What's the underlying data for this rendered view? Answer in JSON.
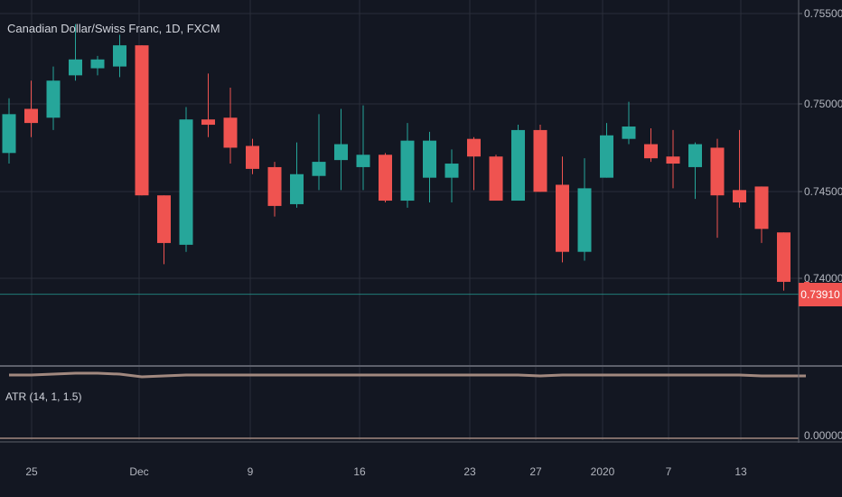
{
  "chart_title": "Canadian Dollar/Swiss Franc, 1D, FXCM",
  "colors": {
    "background": "#131722",
    "grid": "#2a2e39",
    "text": "#d1d4dc",
    "axis_text": "#b2b5be",
    "up": "#26a69a",
    "down": "#ef5350",
    "atr_line": "#a1887f",
    "price_line": "#26a69a"
  },
  "chart_data": [
    {
      "type": "candlestick",
      "title": "Canadian Dollar/Swiss Franc, 1D, FXCM",
      "y_ticks": [
        "0.75500",
        "0.75000",
        "0.74500",
        "0.74000"
      ],
      "ylim": [
        0.7365,
        0.7555
      ],
      "x_ticks": [
        "25",
        "Dec",
        "9",
        "16",
        "23",
        "27",
        "2020",
        "7",
        "13"
      ],
      "last_price": 0.7391,
      "last_price_label": "0.73910",
      "grid": true,
      "candles": [
        {
          "o": 0.7471,
          "h": 0.7502,
          "l": 0.7465,
          "c": 0.7493
        },
        {
          "o": 0.7496,
          "h": 0.7512,
          "l": 0.748,
          "c": 0.7488
        },
        {
          "o": 0.7491,
          "h": 0.752,
          "l": 0.7484,
          "c": 0.7512
        },
        {
          "o": 0.7515,
          "h": 0.7544,
          "l": 0.7512,
          "c": 0.7524
        },
        {
          "o": 0.7519,
          "h": 0.7526,
          "l": 0.7515,
          "c": 0.7524
        },
        {
          "o": 0.752,
          "h": 0.7538,
          "l": 0.7514,
          "c": 0.7532
        },
        {
          "o": 0.7532,
          "h": 0.7532,
          "l": 0.7447,
          "c": 0.7447
        },
        {
          "o": 0.7447,
          "h": 0.7447,
          "l": 0.7408,
          "c": 0.742
        },
        {
          "o": 0.7419,
          "h": 0.7497,
          "l": 0.7415,
          "c": 0.749
        },
        {
          "o": 0.749,
          "h": 0.7516,
          "l": 0.748,
          "c": 0.7487
        },
        {
          "o": 0.7491,
          "h": 0.7508,
          "l": 0.7465,
          "c": 0.7474
        },
        {
          "o": 0.7475,
          "h": 0.7479,
          "l": 0.7459,
          "c": 0.7462
        },
        {
          "o": 0.7463,
          "h": 0.7466,
          "l": 0.7435,
          "c": 0.7441
        },
        {
          "o": 0.7442,
          "h": 0.7477,
          "l": 0.744,
          "c": 0.7459
        },
        {
          "o": 0.7458,
          "h": 0.7493,
          "l": 0.745,
          "c": 0.7466
        },
        {
          "o": 0.7467,
          "h": 0.7496,
          "l": 0.745,
          "c": 0.7476
        },
        {
          "o": 0.7463,
          "h": 0.7498,
          "l": 0.745,
          "c": 0.747
        },
        {
          "o": 0.747,
          "h": 0.7471,
          "l": 0.7443,
          "c": 0.7444
        },
        {
          "o": 0.7444,
          "h": 0.7488,
          "l": 0.744,
          "c": 0.7478
        },
        {
          "o": 0.7457,
          "h": 0.7483,
          "l": 0.7443,
          "c": 0.7478
        },
        {
          "o": 0.7457,
          "h": 0.7473,
          "l": 0.7443,
          "c": 0.7465
        },
        {
          "o": 0.7479,
          "h": 0.748,
          "l": 0.745,
          "c": 0.7469
        },
        {
          "o": 0.7469,
          "h": 0.747,
          "l": 0.7444,
          "c": 0.7444
        },
        {
          "o": 0.7444,
          "h": 0.7487,
          "l": 0.7444,
          "c": 0.7484
        },
        {
          "o": 0.7484,
          "h": 0.7487,
          "l": 0.7449,
          "c": 0.7449
        },
        {
          "o": 0.7453,
          "h": 0.7469,
          "l": 0.7409,
          "c": 0.7415
        },
        {
          "o": 0.7415,
          "h": 0.7468,
          "l": 0.741,
          "c": 0.7451
        },
        {
          "o": 0.7457,
          "h": 0.7488,
          "l": 0.7457,
          "c": 0.7481
        },
        {
          "o": 0.7479,
          "h": 0.75,
          "l": 0.7476,
          "c": 0.7486
        },
        {
          "o": 0.7476,
          "h": 0.7485,
          "l": 0.7466,
          "c": 0.7468
        },
        {
          "o": 0.7469,
          "h": 0.7484,
          "l": 0.7451,
          "c": 0.7465
        },
        {
          "o": 0.7463,
          "h": 0.7477,
          "l": 0.7445,
          "c": 0.7476
        },
        {
          "o": 0.7474,
          "h": 0.7479,
          "l": 0.7423,
          "c": 0.7447
        },
        {
          "o": 0.745,
          "h": 0.7484,
          "l": 0.744,
          "c": 0.7443
        },
        {
          "o": 0.7452,
          "h": 0.7452,
          "l": 0.742,
          "c": 0.7428
        },
        {
          "o": 0.7426,
          "h": 0.7426,
          "l": 0.7393,
          "c": 0.7398
        },
        {
          "o": 0.7398,
          "h": 0.7398,
          "l": 0.7391,
          "c": 0.7391
        }
      ]
    },
    {
      "type": "line",
      "title": "ATR (14, 1, 1.5)",
      "y_ticks": [
        "0.00000"
      ],
      "series": [
        {
          "values": [
            0.007,
            0.007,
            0.0071,
            0.0072,
            0.0072,
            0.0071,
            0.0068,
            0.0069,
            0.007,
            0.007,
            0.007,
            0.007,
            0.007,
            0.007,
            0.007,
            0.007,
            0.007,
            0.007,
            0.007,
            0.007,
            0.007,
            0.007,
            0.007,
            0.007,
            0.0069,
            0.007,
            0.007,
            0.007,
            0.007,
            0.007,
            0.007,
            0.007,
            0.007,
            0.007,
            0.0069,
            0.0069,
            0.0069
          ]
        }
      ]
    }
  ]
}
